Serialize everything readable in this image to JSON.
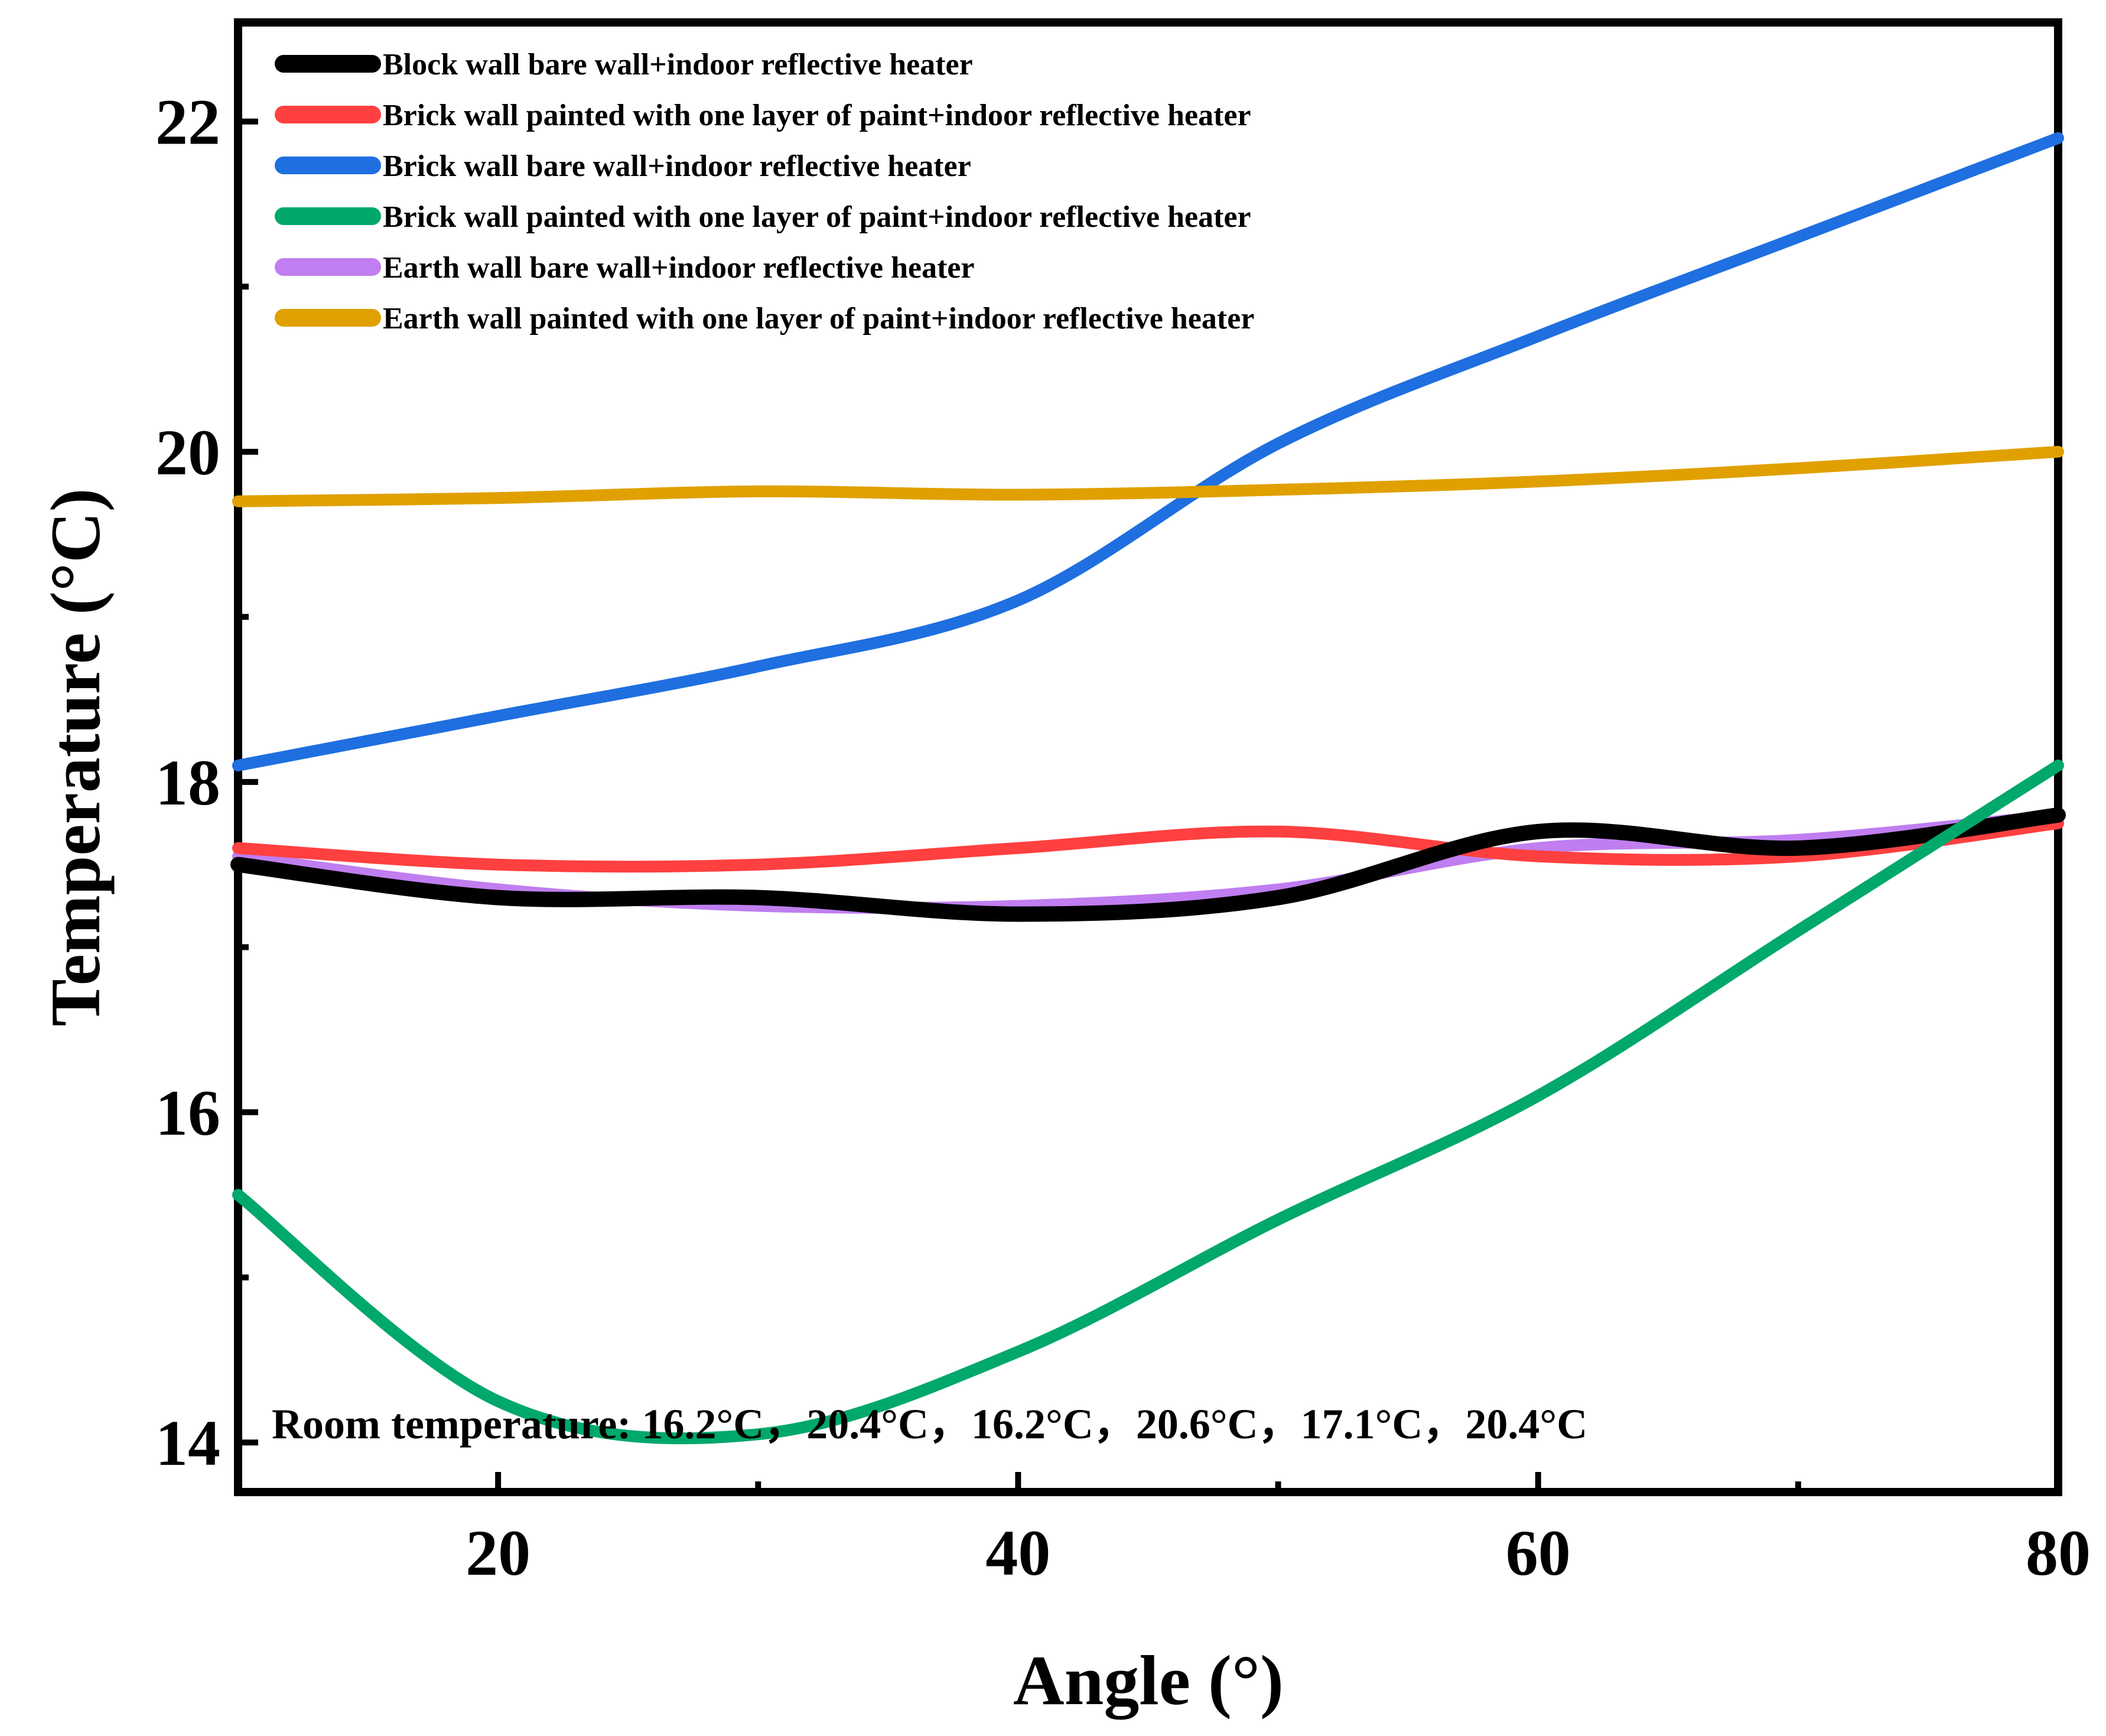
{
  "chart_data": {
    "type": "line",
    "title": "",
    "xlabel": "Angle (°)",
    "ylabel": "Temperature (°C)",
    "xlim": [
      10,
      80
    ],
    "ylim": [
      13.7,
      22.6
    ],
    "x_ticks": [
      20,
      40,
      60,
      80
    ],
    "y_ticks": [
      14,
      16,
      18,
      20,
      22
    ],
    "x": [
      10,
      20,
      30,
      40,
      50,
      60,
      70,
      80
    ],
    "legend_position": "top-left",
    "series": [
      {
        "name": "Block wall bare wall+indoor reflective heater",
        "color": "#000000",
        "values": [
          17.5,
          17.3,
          17.3,
          17.2,
          17.3,
          17.7,
          17.6,
          17.8
        ]
      },
      {
        "name": "Brick wall painted with one layer of paint+indoor reflective heater",
        "color": "#ff4040",
        "values": [
          17.6,
          17.5,
          17.5,
          17.6,
          17.7,
          17.55,
          17.55,
          17.75
        ]
      },
      {
        "name": "Brick wall bare wall+indoor reflective heater",
        "color": "#1f6fe0",
        "values": [
          18.1,
          18.4,
          18.7,
          19.1,
          20.05,
          20.7,
          21.3,
          21.9
        ]
      },
      {
        "name": "Brick wall painted with one layer of paint+indoor reflective heater",
        "color": "#00a86b",
        "values": [
          15.5,
          14.25,
          14.05,
          14.55,
          15.35,
          16.1,
          17.1,
          18.1
        ]
      },
      {
        "name": "Earth wall bare wall+indoor reflective heater",
        "color": "#c07ef0",
        "values": [
          17.55,
          17.35,
          17.25,
          17.25,
          17.35,
          17.6,
          17.65,
          17.8
        ]
      },
      {
        "name": "Earth wall painted with one layer of paint+indoor reflective heater",
        "color": "#e0a000",
        "values": [
          19.7,
          19.72,
          19.76,
          19.74,
          19.77,
          19.82,
          19.9,
          20.0
        ]
      }
    ],
    "annotation": "Room temperature: 16.2°C，20.4°C，16.2°C，20.6°C，17.1°C，20.4°C"
  }
}
